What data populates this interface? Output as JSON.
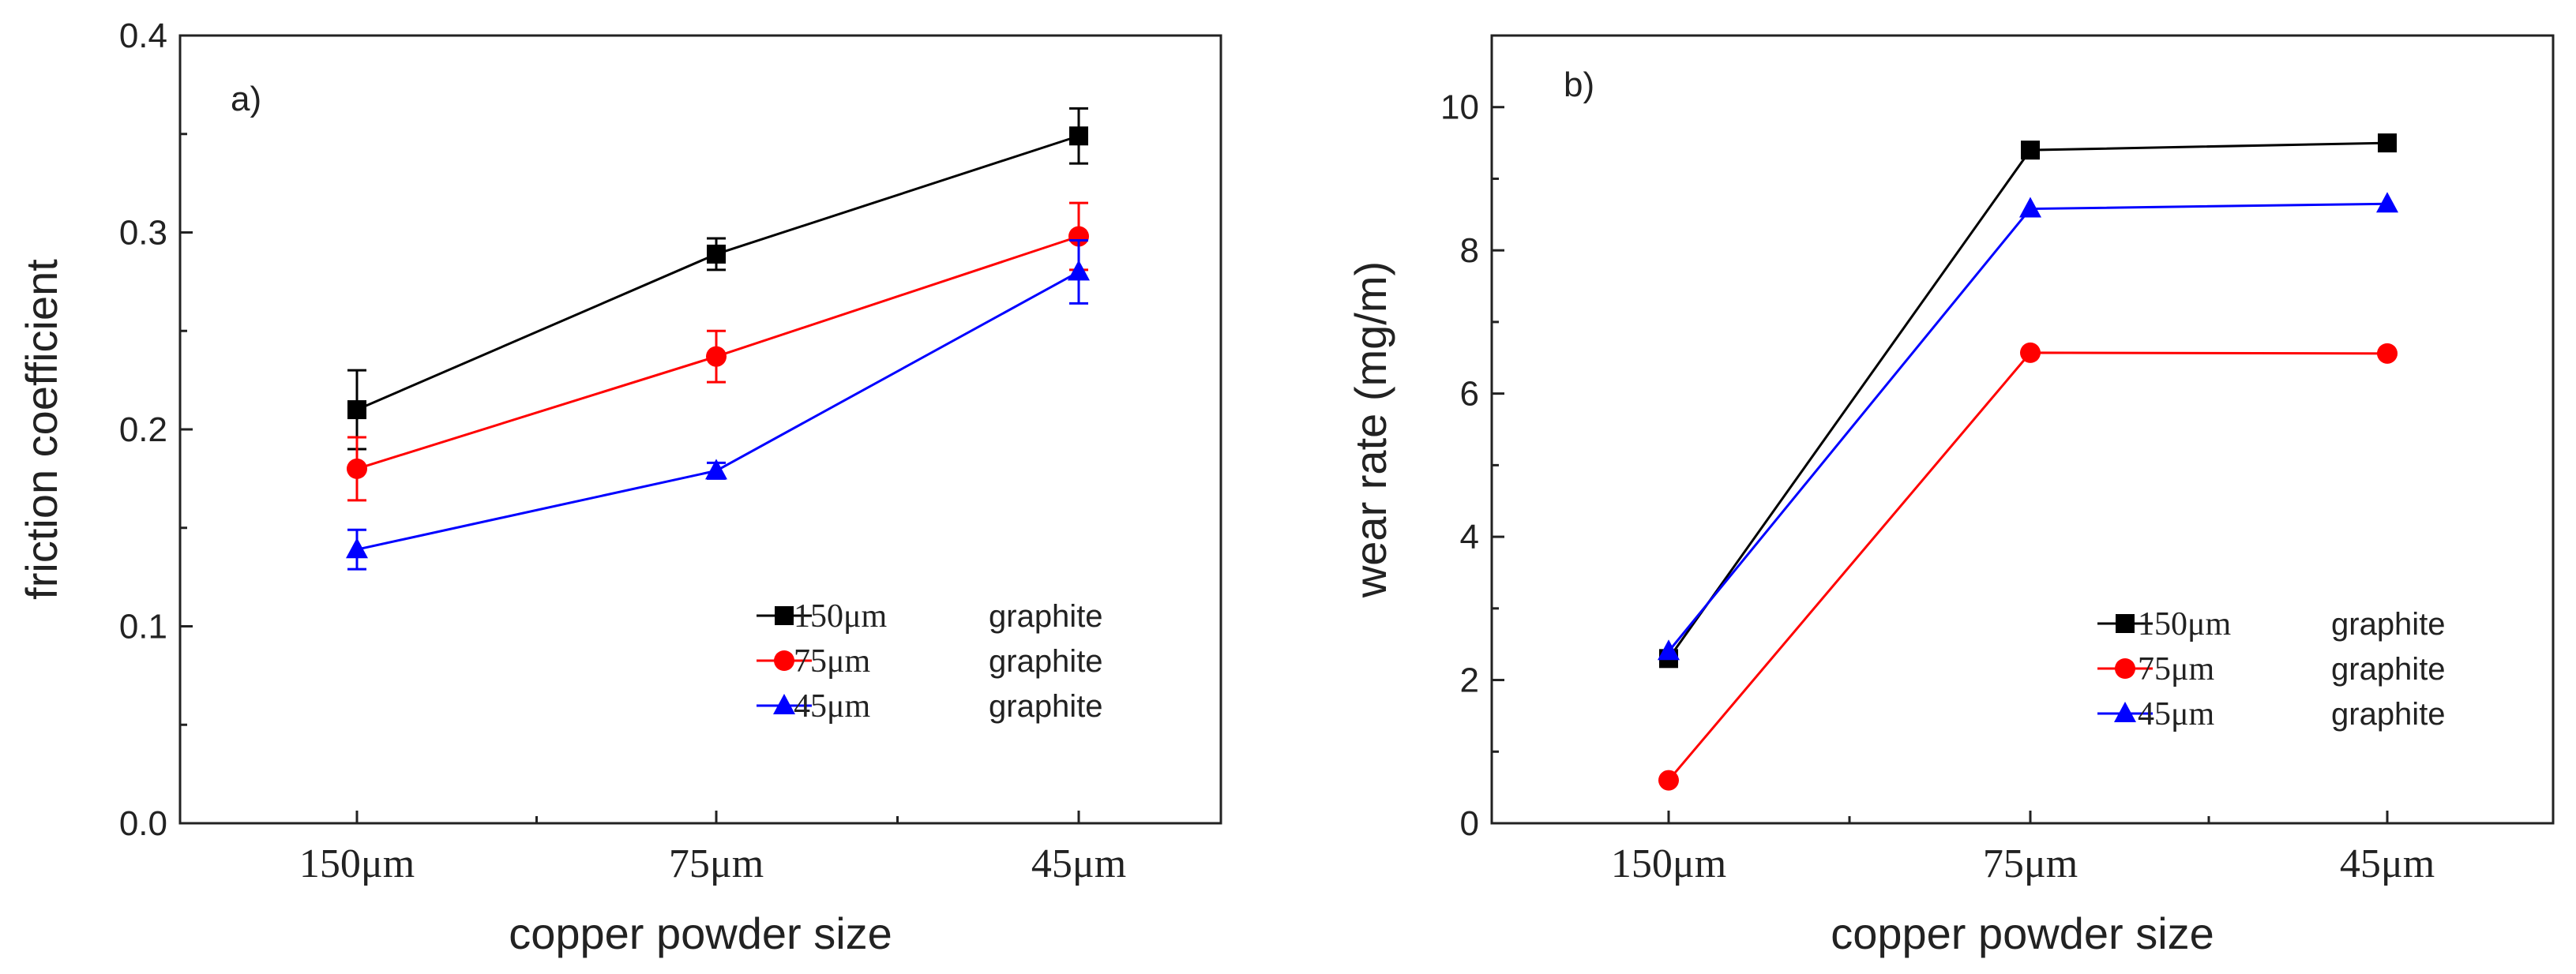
{
  "chart_data": [
    {
      "type": "line",
      "panel_label": "a)",
      "categories": [
        "150μm",
        "75μm",
        "45μm"
      ],
      "xlabel": "copper powder size",
      "ylabel": "friction coefficient",
      "ylim": [
        0.0,
        0.4
      ],
      "yticks": [
        "0.0",
        "0.1",
        "0.2",
        "0.3",
        "0.4"
      ],
      "yticks_values": [
        0.0,
        0.1,
        0.2,
        0.3,
        0.4
      ],
      "legend_position": "bottom-right",
      "series": [
        {
          "name": "150μm",
          "label": "graphite",
          "color": "#000000",
          "marker": "square",
          "values": [
            0.21,
            0.289,
            0.349
          ],
          "errors": [
            0.02,
            0.008,
            0.014
          ]
        },
        {
          "name": "75μm",
          "label": "graphite",
          "color": "#ff0000",
          "marker": "circle",
          "values": [
            0.18,
            0.237,
            0.298
          ],
          "errors": [
            0.016,
            0.013,
            0.017
          ]
        },
        {
          "name": "45μm",
          "label": "graphite",
          "color": "#0000ff",
          "marker": "triangle",
          "values": [
            0.139,
            0.179,
            0.28
          ],
          "errors": [
            0.01,
            0.004,
            0.016
          ]
        }
      ]
    },
    {
      "type": "line",
      "panel_label": "b)",
      "categories": [
        "150μm",
        "75μm",
        "45μm"
      ],
      "xlabel": "copper powder size",
      "ylabel": "wear rate (mg/m)",
      "ylim": [
        0,
        11
      ],
      "yticks": [
        "0",
        "2",
        "4",
        "6",
        "8",
        "10"
      ],
      "yticks_values": [
        0,
        2,
        4,
        6,
        8,
        10
      ],
      "legend_position": "bottom-right",
      "series": [
        {
          "name": "150μm",
          "label": "graphite",
          "color": "#000000",
          "marker": "square",
          "values": [
            2.3,
            9.4,
            9.5
          ]
        },
        {
          "name": "75μm",
          "label": "graphite",
          "color": "#ff0000",
          "marker": "circle",
          "values": [
            0.6,
            6.57,
            6.56
          ]
        },
        {
          "name": "45μm",
          "label": "graphite",
          "color": "#0000ff",
          "marker": "triangle",
          "values": [
            2.4,
            8.58,
            8.65
          ]
        }
      ]
    }
  ]
}
